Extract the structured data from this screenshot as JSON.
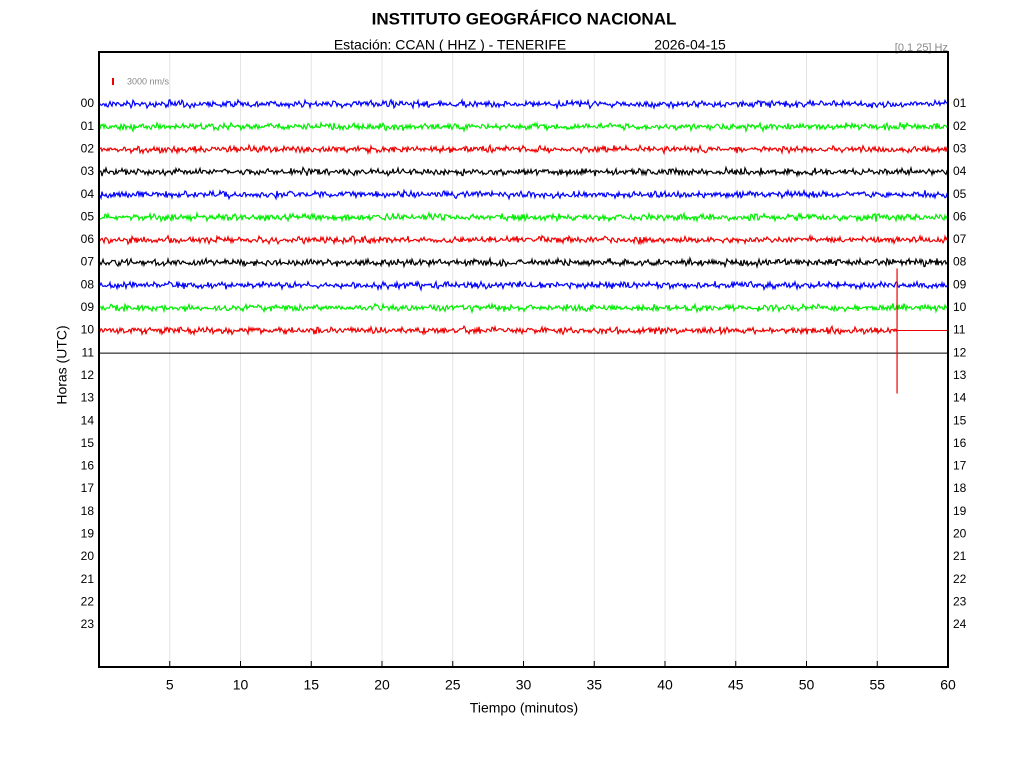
{
  "header": {
    "title": "INSTITUTO GEOGRÁFICO NACIONAL",
    "station": "Estación:  CCAN ( HHZ ) - TENERIFE",
    "date": "2026-04-15",
    "filter": "[0.1 25] Hz",
    "scale_label": "3000 nm/s"
  },
  "chart_data": {
    "type": "helicorder",
    "x_label": "Tiempo (minutos)",
    "y_label": "Horas (UTC)",
    "xlim": [
      0,
      60
    ],
    "xticks": [
      5,
      10,
      15,
      20,
      25,
      30,
      35,
      40,
      45,
      50,
      55,
      60
    ],
    "grid": true,
    "left_labels": [
      "00",
      "01",
      "02",
      "03",
      "04",
      "05",
      "06",
      "07",
      "08",
      "09",
      "10",
      "11",
      "12",
      "13",
      "14",
      "15",
      "16",
      "17",
      "18",
      "19",
      "20",
      "21",
      "22",
      "23"
    ],
    "right_labels": [
      "01",
      "02",
      "03",
      "04",
      "05",
      "06",
      "07",
      "08",
      "09",
      "10",
      "11",
      "12",
      "13",
      "14",
      "15",
      "16",
      "17",
      "18",
      "19",
      "20",
      "21",
      "22",
      "23",
      "24"
    ],
    "traces": [
      {
        "color": "#0000ff",
        "end": 60
      },
      {
        "color": "#00ee00",
        "end": 60
      },
      {
        "color": "#ee0000",
        "end": 60
      },
      {
        "color": "#000000",
        "end": 60
      },
      {
        "color": "#0000ff",
        "end": 60
      },
      {
        "color": "#00ee00",
        "end": 60
      },
      {
        "color": "#ee0000",
        "end": 60
      },
      {
        "color": "#000000",
        "end": 60
      },
      {
        "color": "#0000ff",
        "end": 60
      },
      {
        "color": "#00ee00",
        "end": 60
      },
      {
        "color": "#ee0000",
        "end": 56.4
      }
    ],
    "event_minute": 56.4
  }
}
